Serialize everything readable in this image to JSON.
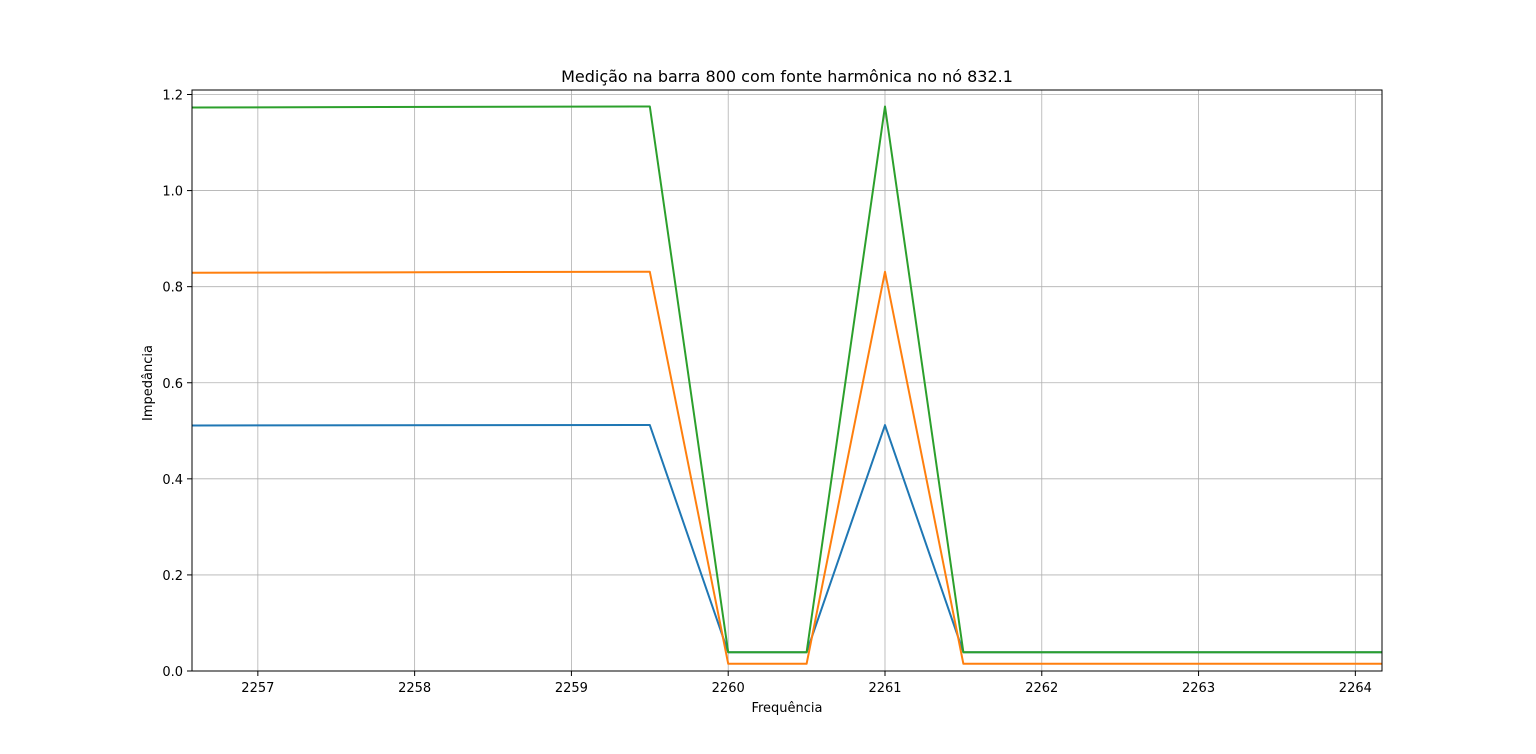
{
  "chart_data": {
    "type": "line",
    "title": "Medição na barra 800 com fonte harmônica no nó 832.1",
    "xlabel": "Frequência",
    "ylabel": "Impedância",
    "xlim": [
      2256.58,
      2264.17
    ],
    "ylim": [
      0.0,
      1.2
    ],
    "grid": true,
    "legend": "none",
    "x_ticks": [
      2257,
      2258,
      2259,
      2260,
      2261,
      2262,
      2263,
      2264
    ],
    "x_tick_labels": [
      "2257",
      "2258",
      "2259",
      "2260",
      "2261",
      "2262",
      "2263",
      "2264"
    ],
    "y_ticks": [
      0.0,
      0.2,
      0.4,
      0.6,
      0.8,
      1.0,
      1.2
    ],
    "y_tick_labels": [
      "0.0",
      "0.2",
      "0.4",
      "0.6",
      "0.8",
      "1.0",
      "1.2"
    ],
    "series": [
      {
        "color": "#1f77b4",
        "x": [
          2256.5,
          2259.5,
          2260.0,
          2260.5,
          2261.0,
          2261.5,
          2262.0,
          2264.17
        ],
        "y": [
          0.511,
          0.512,
          0.039,
          0.039,
          0.512,
          0.039,
          0.039,
          0.039
        ]
      },
      {
        "color": "#ff7f0e",
        "x": [
          2256.5,
          2259.5,
          2260.0,
          2260.5,
          2261.0,
          2261.5,
          2262.0,
          2264.17
        ],
        "y": [
          0.829,
          0.831,
          0.015,
          0.015,
          0.831,
          0.015,
          0.015,
          0.015
        ]
      },
      {
        "color": "#2ca02c",
        "x": [
          2256.5,
          2259.5,
          2260.0,
          2260.5,
          2261.0,
          2261.5,
          2262.0,
          2264.17
        ],
        "y": [
          1.173,
          1.175,
          0.039,
          0.039,
          1.175,
          0.039,
          0.039,
          0.039
        ]
      }
    ]
  }
}
